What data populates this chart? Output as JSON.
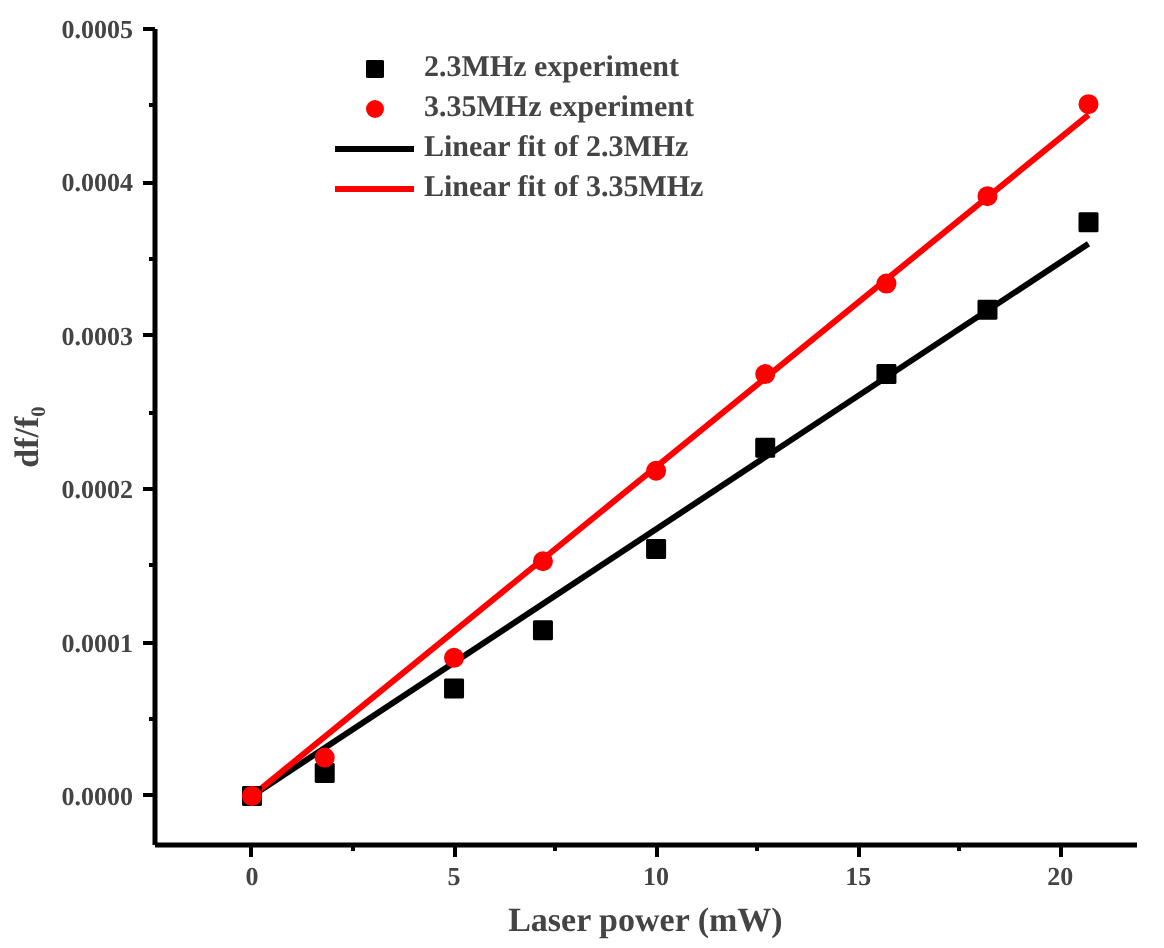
{
  "chart_data": {
    "type": "scatter",
    "xlabel": "Laser power (mW)",
    "ylabel": "df/f₀",
    "xlim": [
      -2.4,
      21.9
    ],
    "ylim": [
      -3.2e-05,
      0.0005
    ],
    "xticks": [
      0,
      {
        "value": 2.5,
        "label": null
      },
      5,
      {
        "value": 7.5,
        "label": null
      },
      10,
      {
        "value": 12.5,
        "label": null
      },
      15,
      {
        "value": 17.5,
        "label": null
      },
      20
    ],
    "yticks": [
      {
        "value": 0,
        "label": "0.0000"
      },
      {
        "value": 5e-05,
        "label": null
      },
      {
        "value": 0.0001,
        "label": "0.0001"
      },
      {
        "value": 0.00015,
        "label": null
      },
      {
        "value": 0.0002,
        "label": "0.0002"
      },
      {
        "value": 0.00025,
        "label": null
      },
      {
        "value": 0.0003,
        "label": "0.0003"
      },
      {
        "value": 0.00035,
        "label": null
      },
      {
        "value": 0.0004,
        "label": "0.0004"
      },
      {
        "value": 0.00045,
        "label": null
      },
      {
        "value": 0.0005,
        "label": "0.0005"
      }
    ],
    "grid": false,
    "legend": "top left",
    "series": [
      {
        "name": "2.3MHz experiment",
        "marker": "square",
        "color": "#000000",
        "x": [
          0,
          1.8,
          5,
          7.2,
          10,
          12.7,
          15.7,
          18.2,
          20.7
        ],
        "values": [
          0,
          1.5e-05,
          7e-05,
          0.000108,
          0.000161,
          0.000227,
          0.000275,
          0.000317,
          0.000374
        ]
      },
      {
        "name": "3.35MHz experiment",
        "marker": "circle",
        "color": "#ff0000",
        "x": [
          0,
          1.8,
          5,
          7.2,
          10,
          12.7,
          15.7,
          18.2,
          20.7
        ],
        "values": [
          0,
          2.5e-05,
          9e-05,
          0.000153,
          0.000212,
          0.000275,
          0.000334,
          0.000391,
          0.000451
        ]
      },
      {
        "name": "Linear fit of 2.3MHz",
        "type": "line",
        "color": "#000000",
        "x": [
          0,
          20.7
        ],
        "values": [
          0,
          0.00036
        ]
      },
      {
        "name": "Linear fit of 3.35MHz",
        "type": "line",
        "color": "#ff0000",
        "x": [
          0,
          20.7
        ],
        "values": [
          0,
          0.000444
        ]
      }
    ]
  }
}
